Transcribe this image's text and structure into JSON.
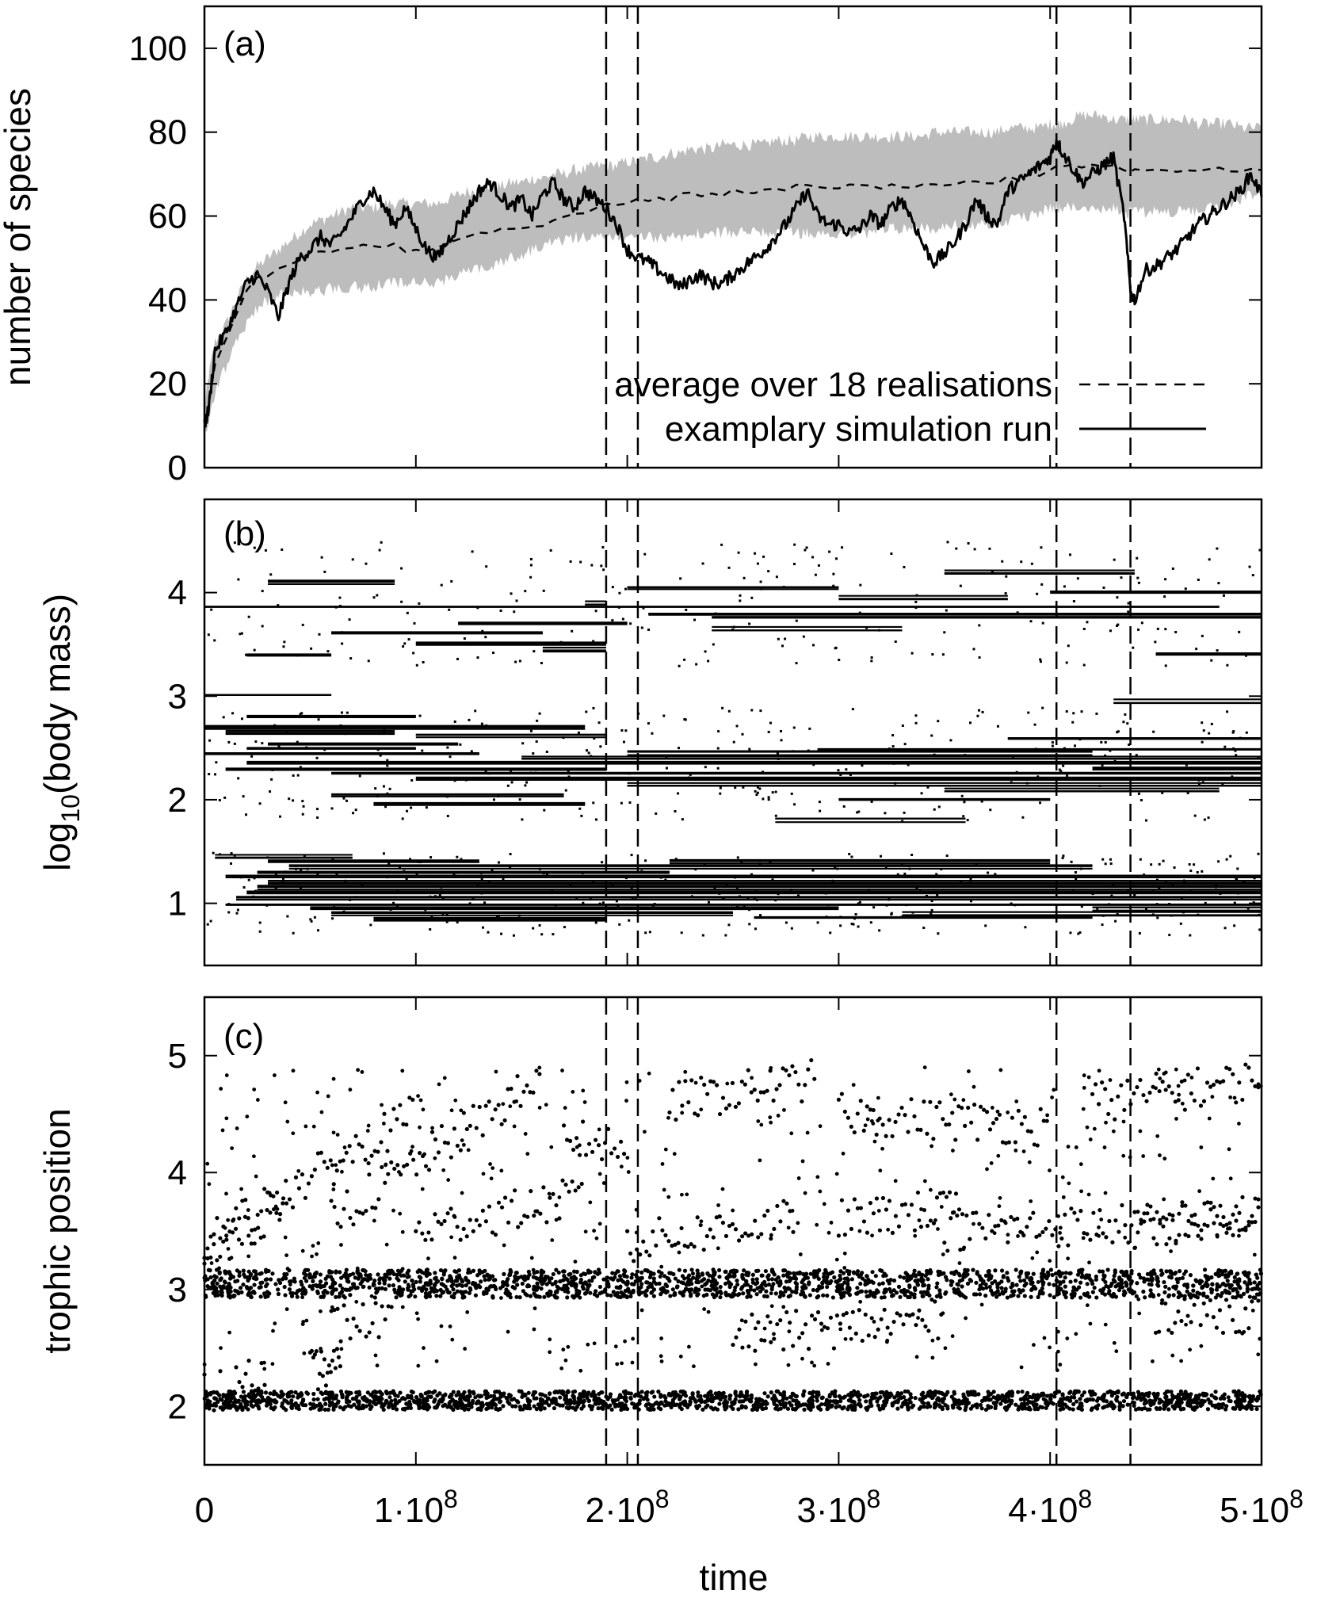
{
  "figure": {
    "xlabel": "time",
    "x_tick_labels": [
      {
        "base": "0",
        "exp": ""
      },
      {
        "base": "1·10",
        "exp": "8"
      },
      {
        "base": "2·10",
        "exp": "8"
      },
      {
        "base": "3·10",
        "exp": "8"
      },
      {
        "base": "4·10",
        "exp": "8"
      },
      {
        "base": "5·10",
        "exp": "8"
      }
    ],
    "colors": {
      "band": "#bdbdbd",
      "line": "#000000",
      "frame": "#000000"
    }
  },
  "chart_data": [
    {
      "type": "line",
      "panel": "(a)",
      "ylabel": "number of species",
      "xlim": [
        0,
        500000000
      ],
      "ylim": [
        0,
        110
      ],
      "yticks": [
        0,
        20,
        40,
        60,
        80,
        100
      ],
      "event_lines_x": [
        190000000,
        205000000,
        403000000,
        438000000
      ],
      "legend": {
        "placement": "bottom-right",
        "entries": [
          {
            "label": "average over 18 realisations",
            "style": "dashed"
          },
          {
            "label": "examplary simulation run",
            "style": "solid"
          }
        ]
      },
      "x": [
        0,
        2000000,
        5000000,
        10000000,
        15000000,
        20000000,
        25000000,
        30000000,
        35000000,
        40000000,
        45000000,
        50000000,
        55000000,
        60000000,
        65000000,
        70000000,
        75000000,
        80000000,
        85000000,
        90000000,
        95000000,
        100000000,
        105000000,
        110000000,
        115000000,
        120000000,
        125000000,
        130000000,
        135000000,
        140000000,
        145000000,
        150000000,
        155000000,
        160000000,
        165000000,
        170000000,
        175000000,
        180000000,
        185000000,
        190000000,
        195000000,
        200000000,
        205000000,
        210000000,
        215000000,
        220000000,
        225000000,
        230000000,
        235000000,
        240000000,
        245000000,
        250000000,
        255000000,
        260000000,
        265000000,
        270000000,
        275000000,
        280000000,
        285000000,
        290000000,
        295000000,
        300000000,
        305000000,
        310000000,
        315000000,
        320000000,
        325000000,
        330000000,
        335000000,
        340000000,
        345000000,
        350000000,
        355000000,
        360000000,
        365000000,
        370000000,
        375000000,
        380000000,
        385000000,
        390000000,
        395000000,
        400000000,
        403000000,
        405000000,
        410000000,
        415000000,
        420000000,
        425000000,
        430000000,
        435000000,
        438000000,
        440000000,
        445000000,
        450000000,
        455000000,
        460000000,
        465000000,
        470000000,
        475000000,
        480000000,
        485000000,
        490000000,
        495000000,
        500000000
      ],
      "series": [
        {
          "name": "examplary simulation run",
          "style": "solid",
          "values": [
            10,
            14,
            28,
            32,
            38,
            44,
            46,
            42,
            36,
            44,
            50,
            52,
            55,
            53,
            56,
            60,
            64,
            66,
            62,
            58,
            62,
            57,
            52,
            50,
            54,
            58,
            62,
            66,
            68,
            65,
            62,
            64,
            60,
            65,
            68,
            64,
            62,
            66,
            64,
            62,
            58,
            52,
            50,
            49,
            47,
            45,
            43,
            45,
            46,
            44,
            44,
            46,
            48,
            50,
            52,
            55,
            58,
            62,
            66,
            60,
            58,
            58,
            56,
            57,
            60,
            58,
            62,
            64,
            59,
            53,
            49,
            51,
            54,
            58,
            64,
            60,
            58,
            66,
            68,
            70,
            72,
            74,
            78,
            76,
            72,
            68,
            70,
            72,
            74,
            60,
            42,
            40,
            47,
            48,
            50,
            52,
            55,
            58,
            60,
            62,
            64,
            66,
            70,
            65
          ]
        },
        {
          "name": "average over 18 realisations",
          "style": "dashed",
          "values": [
            10,
            15,
            25,
            31,
            37,
            42,
            45,
            46,
            47,
            48,
            50,
            51,
            52,
            52,
            52,
            53,
            53,
            53,
            53,
            53,
            52,
            52,
            52,
            53,
            53,
            54,
            55,
            56,
            56,
            57,
            57,
            57,
            58,
            58,
            59,
            60,
            61,
            61,
            62,
            63,
            63,
            63,
            64,
            64,
            64,
            64,
            65,
            65,
            65,
            65,
            65,
            66,
            66,
            66,
            66,
            66,
            66,
            67,
            67,
            67,
            67,
            67,
            67,
            67,
            67,
            67,
            67,
            67,
            67,
            67,
            67,
            67,
            67,
            68,
            68,
            68,
            68,
            69,
            69,
            70,
            70,
            71,
            72,
            72,
            72,
            72,
            72,
            72,
            72,
            71,
            71,
            71,
            71,
            71,
            71,
            71,
            71,
            71,
            71,
            71,
            71,
            71,
            71,
            71
          ]
        },
        {
          "name": "",
          "style": "band-upper",
          "values": [
            14,
            22,
            30,
            34,
            40,
            45,
            48,
            50,
            52,
            54,
            56,
            58,
            59,
            60,
            61,
            62,
            62,
            62,
            63,
            63,
            63,
            63,
            63,
            63,
            64,
            65,
            66,
            66,
            67,
            67,
            68,
            68,
            69,
            69,
            70,
            70,
            71,
            71,
            72,
            72,
            72,
            73,
            73,
            74,
            74,
            75,
            75,
            76,
            76,
            76,
            77,
            77,
            77,
            77,
            77,
            78,
            78,
            78,
            79,
            79,
            79,
            79,
            79,
            79,
            79,
            79,
            79,
            79,
            79,
            79,
            80,
            80,
            80,
            80,
            80,
            80,
            80,
            81,
            81,
            81,
            81,
            82,
            82,
            82,
            83,
            84,
            84,
            84,
            83,
            83,
            83,
            83,
            83,
            83,
            83,
            83,
            83,
            82,
            82,
            82,
            82,
            81,
            81,
            81
          ]
        },
        {
          "name": "",
          "style": "band-lower",
          "values": [
            10,
            10,
            18,
            24,
            30,
            34,
            38,
            40,
            41,
            42,
            42,
            42,
            42,
            43,
            43,
            43,
            43,
            43,
            44,
            44,
            44,
            44,
            44,
            44,
            45,
            46,
            47,
            47,
            48,
            49,
            50,
            51,
            52,
            53,
            54,
            54,
            55,
            55,
            55,
            55,
            55,
            55,
            55,
            55,
            55,
            55,
            55,
            55,
            56,
            56,
            56,
            56,
            56,
            56,
            56,
            56,
            56,
            56,
            56,
            56,
            56,
            56,
            56,
            56,
            56,
            57,
            57,
            57,
            57,
            57,
            57,
            57,
            58,
            58,
            58,
            58,
            59,
            59,
            60,
            60,
            61,
            62,
            62,
            62,
            62,
            62,
            62,
            62,
            62,
            61,
            61,
            61,
            61,
            61,
            61,
            61,
            61,
            61,
            62,
            62,
            63,
            64,
            65,
            65
          ]
        }
      ]
    },
    {
      "type": "scatter",
      "panel": "(b)",
      "ylabel": "log₁₀(body mass)",
      "xlim": [
        0,
        500000000
      ],
      "ylim": [
        0.4,
        4.9
      ],
      "yticks": [
        1,
        2,
        3,
        4
      ],
      "event_lines_x": [
        190000000,
        205000000,
        403000000,
        438000000
      ],
      "lineages": [
        {
          "x0": 10000000,
          "x1": 500000000,
          "y": 1.0
        },
        {
          "x0": 15000000,
          "x1": 500000000,
          "y": 1.05
        },
        {
          "x0": 20000000,
          "x1": 500000000,
          "y": 1.1
        },
        {
          "x0": 25000000,
          "x1": 500000000,
          "y": 1.15
        },
        {
          "x0": 30000000,
          "x1": 500000000,
          "y": 1.2
        },
        {
          "x0": 10000000,
          "x1": 500000000,
          "y": 1.25
        },
        {
          "x0": 25000000,
          "x1": 220000000,
          "y": 1.3
        },
        {
          "x0": 40000000,
          "x1": 420000000,
          "y": 1.35
        },
        {
          "x0": 50000000,
          "x1": 300000000,
          "y": 0.95
        },
        {
          "x0": 60000000,
          "x1": 250000000,
          "y": 0.9
        },
        {
          "x0": 80000000,
          "x1": 190000000,
          "y": 0.85
        },
        {
          "x0": 330000000,
          "x1": 500000000,
          "y": 0.9
        },
        {
          "x0": 260000000,
          "x1": 420000000,
          "y": 0.85
        },
        {
          "x0": 420000000,
          "x1": 500000000,
          "y": 0.95
        },
        {
          "x0": 30000000,
          "x1": 130000000,
          "y": 1.4
        },
        {
          "x0": 5000000,
          "x1": 70000000,
          "y": 1.45
        },
        {
          "x0": 220000000,
          "x1": 400000000,
          "y": 1.4
        },
        {
          "x0": 10000000,
          "x1": 190000000,
          "y": 2.3
        },
        {
          "x0": 20000000,
          "x1": 500000000,
          "y": 2.35
        },
        {
          "x0": 60000000,
          "x1": 500000000,
          "y": 2.25
        },
        {
          "x0": 100000000,
          "x1": 500000000,
          "y": 2.2
        },
        {
          "x0": 150000000,
          "x1": 500000000,
          "y": 2.4
        },
        {
          "x0": 0,
          "x1": 130000000,
          "y": 2.45
        },
        {
          "x0": 20000000,
          "x1": 100000000,
          "y": 2.5
        },
        {
          "x0": 30000000,
          "x1": 120000000,
          "y": 2.55
        },
        {
          "x0": 10000000,
          "x1": 90000000,
          "y": 2.65
        },
        {
          "x0": 0,
          "x1": 180000000,
          "y": 2.7
        },
        {
          "x0": 20000000,
          "x1": 100000000,
          "y": 2.8
        },
        {
          "x0": 0,
          "x1": 60000000,
          "y": 3.0
        },
        {
          "x0": 200000000,
          "x1": 420000000,
          "y": 2.45
        },
        {
          "x0": 200000000,
          "x1": 500000000,
          "y": 2.15
        },
        {
          "x0": 350000000,
          "x1": 480000000,
          "y": 2.1
        },
        {
          "x0": 290000000,
          "x1": 500000000,
          "y": 2.5
        },
        {
          "x0": 420000000,
          "x1": 500000000,
          "y": 2.3
        },
        {
          "x0": 60000000,
          "x1": 170000000,
          "y": 2.05
        },
        {
          "x0": 80000000,
          "x1": 180000000,
          "y": 1.95
        },
        {
          "x0": 270000000,
          "x1": 360000000,
          "y": 1.8
        },
        {
          "x0": 300000000,
          "x1": 400000000,
          "y": 2.0
        },
        {
          "x0": 380000000,
          "x1": 500000000,
          "y": 2.6
        },
        {
          "x0": 430000000,
          "x1": 500000000,
          "y": 2.95
        },
        {
          "x0": 100000000,
          "x1": 190000000,
          "y": 2.62
        },
        {
          "x0": 0,
          "x1": 480000000,
          "y": 3.85
        },
        {
          "x0": 210000000,
          "x1": 500000000,
          "y": 3.8
        },
        {
          "x0": 240000000,
          "x1": 500000000,
          "y": 3.75
        },
        {
          "x0": 60000000,
          "x1": 160000000,
          "y": 3.6
        },
        {
          "x0": 100000000,
          "x1": 190000000,
          "y": 3.5
        },
        {
          "x0": 450000000,
          "x1": 500000000,
          "y": 3.4
        },
        {
          "x0": 20000000,
          "x1": 60000000,
          "y": 3.4
        },
        {
          "x0": 30000000,
          "x1": 90000000,
          "y": 4.1
        },
        {
          "x0": 200000000,
          "x1": 300000000,
          "y": 4.05
        },
        {
          "x0": 400000000,
          "x1": 500000000,
          "y": 4.0
        },
        {
          "x0": 300000000,
          "x1": 380000000,
          "y": 3.95
        },
        {
          "x0": 120000000,
          "x1": 200000000,
          "y": 3.7
        },
        {
          "x0": 160000000,
          "x1": 190000000,
          "y": 3.45
        },
        {
          "x0": 350000000,
          "x1": 440000000,
          "y": 4.2
        },
        {
          "x0": 240000000,
          "x1": 330000000,
          "y": 3.65
        },
        {
          "x0": 180000000,
          "x1": 190000000,
          "y": 3.9
        }
      ]
    },
    {
      "type": "scatter",
      "panel": "(c)",
      "ylabel": "trophic position",
      "xlim": [
        0,
        500000000
      ],
      "ylim": [
        1.5,
        5.5
      ],
      "yticks": [
        2,
        3,
        4,
        5
      ],
      "event_lines_x": [
        190000000,
        205000000,
        403000000,
        438000000
      ],
      "bands": [
        {
          "center": 2.05,
          "spread": 0.08,
          "density": 1.0
        },
        {
          "center": 3.05,
          "spread": 0.12,
          "density": 1.0
        }
      ],
      "tracks": [
        {
          "x0": 0,
          "x1": 100000000,
          "y_start": 3.4,
          "y_end": 4.5
        },
        {
          "x0": 60000000,
          "x1": 160000000,
          "y_start": 3.6,
          "y_end": 4.8
        },
        {
          "x0": 100000000,
          "x1": 180000000,
          "y_start": 3.5,
          "y_end": 3.8
        },
        {
          "x0": 170000000,
          "x1": 200000000,
          "y_start": 4.3,
          "y_end": 4.2
        },
        {
          "x0": 200000000,
          "x1": 280000000,
          "y_start": 3.4,
          "y_end": 3.6
        },
        {
          "x0": 220000000,
          "x1": 290000000,
          "y_start": 4.6,
          "y_end": 4.8
        },
        {
          "x0": 300000000,
          "x1": 360000000,
          "y_start": 3.6,
          "y_end": 3.7
        },
        {
          "x0": 300000000,
          "x1": 400000000,
          "y_start": 4.5,
          "y_end": 4.4
        },
        {
          "x0": 350000000,
          "x1": 500000000,
          "y_start": 3.5,
          "y_end": 3.6
        },
        {
          "x0": 420000000,
          "x1": 500000000,
          "y_start": 4.6,
          "y_end": 4.8
        },
        {
          "x0": 440000000,
          "x1": 500000000,
          "y_start": 3.5,
          "y_end": 3.7
        },
        {
          "x0": 0,
          "x1": 40000000,
          "y_start": 3.2,
          "y_end": 3.8
        },
        {
          "x0": 250000000,
          "x1": 350000000,
          "y_start": 2.6,
          "y_end": 2.75
        },
        {
          "x0": 450000000,
          "x1": 500000000,
          "y_start": 2.8,
          "y_end": 2.8
        },
        {
          "x0": 60000000,
          "x1": 90000000,
          "y_start": 2.7,
          "y_end": 2.75
        },
        {
          "x0": 50000000,
          "x1": 65000000,
          "y_start": 2.3,
          "y_end": 2.35
        },
        {
          "x0": 0,
          "x1": 30000000,
          "y_start": 2.1,
          "y_end": 2.3
        }
      ]
    }
  ]
}
